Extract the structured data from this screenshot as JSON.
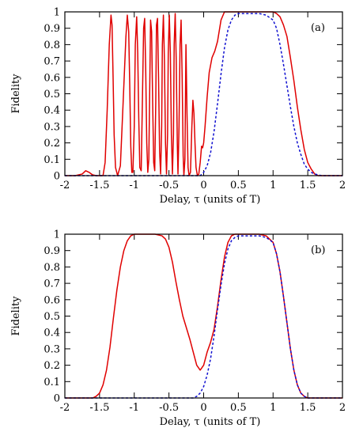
{
  "chart_data": [
    {
      "type": "line",
      "panel_label": "(a)",
      "xlabel": "Delay, τ (units of T)",
      "ylabel": "Fidelity",
      "xlim": [
        -2,
        2
      ],
      "ylim": [
        0,
        1
      ],
      "xticks": [
        "-2",
        "-1.5",
        "-1",
        "-0.5",
        "0",
        "0.5",
        "1",
        "1.5",
        "2"
      ],
      "yticks": [
        "0",
        "0.1",
        "0.2",
        "0.3",
        "0.4",
        "0.5",
        "0.6",
        "0.7",
        "0.8",
        "0.9",
        "1"
      ],
      "grid": false,
      "legend": "none",
      "series": [
        {
          "color": "#e00000",
          "style": "solid",
          "x": [
            -2.0,
            -1.85,
            -1.75,
            -1.7,
            -1.65,
            -1.6,
            -1.55,
            -1.5,
            -1.45,
            -1.42,
            -1.39,
            -1.36,
            -1.335,
            -1.32,
            -1.305,
            -1.29,
            -1.27,
            -1.24,
            -1.2,
            -1.16,
            -1.12,
            -1.1,
            -1.08,
            -1.065,
            -1.05,
            -1.035,
            -1.02,
            -1.0,
            -0.985,
            -0.965,
            -0.95,
            -0.935,
            -0.92,
            -0.9,
            -0.885,
            -0.865,
            -0.85,
            -0.835,
            -0.82,
            -0.805,
            -0.79,
            -0.775,
            -0.765,
            -0.75,
            -0.735,
            -0.72,
            -0.705,
            -0.69,
            -0.68,
            -0.665,
            -0.65,
            -0.635,
            -0.62,
            -0.605,
            -0.595,
            -0.58,
            -0.565,
            -0.55,
            -0.535,
            -0.52,
            -0.51,
            -0.495,
            -0.48,
            -0.465,
            -0.45,
            -0.435,
            -0.425,
            -0.41,
            -0.395,
            -0.38,
            -0.37,
            -0.355,
            -0.34,
            -0.325,
            -0.31,
            -0.295,
            -0.285,
            -0.27,
            -0.255,
            -0.24,
            -0.225,
            -0.21,
            -0.19,
            -0.17,
            -0.155,
            -0.14,
            -0.125,
            -0.11,
            -0.09,
            -0.07,
            -0.05,
            -0.03,
            -0.015,
            0.0,
            0.02,
            0.05,
            0.08,
            0.12,
            0.16,
            0.2,
            0.25,
            0.3,
            0.35,
            0.4,
            0.45,
            0.5,
            0.6,
            0.7,
            0.8,
            0.9,
            1.0,
            1.05,
            1.1,
            1.15,
            1.2,
            1.25,
            1.3,
            1.35,
            1.4,
            1.45,
            1.5,
            1.55,
            1.6,
            1.65,
            1.7,
            1.8,
            1.9,
            2.0
          ],
          "y": [
            0.0,
            0.0,
            0.01,
            0.03,
            0.02,
            0.005,
            0.0,
            0.0,
            0.0,
            0.08,
            0.4,
            0.8,
            0.98,
            0.92,
            0.6,
            0.25,
            0.05,
            0.0,
            0.06,
            0.45,
            0.85,
            0.98,
            0.88,
            0.55,
            0.18,
            0.02,
            0.02,
            0.3,
            0.8,
            0.97,
            0.75,
            0.35,
            0.05,
            0.03,
            0.4,
            0.9,
            0.96,
            0.65,
            0.2,
            0.02,
            0.1,
            0.6,
            0.95,
            0.88,
            0.45,
            0.08,
            0.03,
            0.45,
            0.92,
            0.96,
            0.6,
            0.15,
            0.01,
            0.3,
            0.8,
            0.98,
            0.7,
            0.2,
            0.01,
            0.25,
            0.75,
            0.98,
            0.75,
            0.25,
            0.01,
            0.25,
            0.8,
            0.99,
            0.7,
            0.2,
            0.01,
            0.3,
            0.8,
            0.95,
            0.6,
            0.12,
            0.0,
            0.1,
            0.8,
            0.38,
            0.05,
            0.0,
            0.02,
            0.3,
            0.46,
            0.38,
            0.2,
            0.05,
            0.0,
            0.01,
            0.08,
            0.18,
            0.17,
            0.2,
            0.3,
            0.48,
            0.63,
            0.72,
            0.76,
            0.82,
            0.95,
            1.0,
            1.0,
            1.0,
            1.0,
            1.0,
            1.0,
            1.0,
            1.0,
            1.0,
            1.0,
            0.99,
            0.97,
            0.92,
            0.85,
            0.72,
            0.58,
            0.42,
            0.28,
            0.16,
            0.08,
            0.04,
            0.01,
            0.0,
            0.0,
            0.0,
            0.0,
            0.0
          ]
        },
        {
          "color": "#1010d0",
          "style": "dashed",
          "x": [
            -2.0,
            -0.1,
            -0.05,
            0.0,
            0.05,
            0.1,
            0.15,
            0.2,
            0.25,
            0.3,
            0.35,
            0.4,
            0.45,
            0.5,
            0.55,
            0.6,
            0.7,
            0.8,
            0.9,
            1.0,
            1.05,
            1.1,
            1.15,
            1.2,
            1.25,
            1.3,
            1.35,
            1.4,
            1.45,
            1.5,
            1.55,
            1.6,
            1.7,
            2.0
          ],
          "y": [
            0.0,
            0.0,
            0.0,
            0.02,
            0.06,
            0.14,
            0.27,
            0.44,
            0.62,
            0.78,
            0.89,
            0.95,
            0.98,
            0.99,
            0.99,
            0.99,
            0.99,
            0.99,
            0.98,
            0.95,
            0.9,
            0.8,
            0.68,
            0.55,
            0.42,
            0.3,
            0.2,
            0.13,
            0.07,
            0.04,
            0.02,
            0.01,
            0.0,
            0.0
          ]
        }
      ]
    },
    {
      "type": "line",
      "panel_label": "(b)",
      "xlabel": "Delay, τ (units of T)",
      "ylabel": "Fidelity",
      "xlim": [
        -2,
        2
      ],
      "ylim": [
        0,
        1
      ],
      "xticks": [
        "-2",
        "-1.5",
        "-1",
        "-0.5",
        "0",
        "0.5",
        "1",
        "1.5",
        "2"
      ],
      "yticks": [
        "0",
        "0.1",
        "0.2",
        "0.3",
        "0.4",
        "0.5",
        "0.6",
        "0.7",
        "0.8",
        "0.9",
        "1"
      ],
      "grid": false,
      "legend": "none",
      "series": [
        {
          "color": "#e00000",
          "style": "solid",
          "x": [
            -2.0,
            -1.7,
            -1.6,
            -1.55,
            -1.5,
            -1.45,
            -1.4,
            -1.35,
            -1.3,
            -1.25,
            -1.2,
            -1.15,
            -1.1,
            -1.05,
            -1.0,
            -0.9,
            -0.8,
            -0.7,
            -0.6,
            -0.55,
            -0.5,
            -0.45,
            -0.4,
            -0.35,
            -0.3,
            -0.25,
            -0.2,
            -0.15,
            -0.1,
            -0.05,
            0.0,
            0.05,
            0.1,
            0.15,
            0.2,
            0.25,
            0.3,
            0.35,
            0.4,
            0.45,
            0.5,
            0.6,
            0.7,
            0.8,
            0.9,
            1.0,
            1.05,
            1.1,
            1.15,
            1.2,
            1.25,
            1.3,
            1.35,
            1.4,
            1.45,
            1.5,
            1.6,
            2.0
          ],
          "y": [
            0.0,
            0.0,
            0.0,
            0.01,
            0.03,
            0.08,
            0.17,
            0.31,
            0.49,
            0.66,
            0.8,
            0.9,
            0.96,
            0.99,
            1.0,
            1.0,
            1.0,
            1.0,
            0.99,
            0.97,
            0.92,
            0.83,
            0.71,
            0.6,
            0.5,
            0.43,
            0.36,
            0.28,
            0.2,
            0.17,
            0.2,
            0.28,
            0.34,
            0.42,
            0.56,
            0.72,
            0.86,
            0.95,
            0.99,
            1.0,
            1.0,
            1.0,
            1.0,
            1.0,
            0.99,
            0.95,
            0.88,
            0.77,
            0.62,
            0.46,
            0.3,
            0.17,
            0.08,
            0.03,
            0.01,
            0.0,
            0.0,
            0.0
          ]
        },
        {
          "color": "#1010d0",
          "style": "dashed",
          "x": [
            -2.0,
            -0.2,
            -0.15,
            -0.1,
            -0.05,
            0.0,
            0.05,
            0.1,
            0.15,
            0.2,
            0.25,
            0.3,
            0.35,
            0.4,
            0.45,
            0.5,
            0.55,
            0.6,
            0.7,
            0.8,
            0.9,
            1.0,
            1.05,
            1.1,
            1.15,
            1.2,
            1.25,
            1.3,
            1.35,
            1.4,
            1.45,
            1.5,
            1.6,
            2.0
          ],
          "y": [
            0.0,
            0.0,
            0.0,
            0.01,
            0.03,
            0.07,
            0.14,
            0.24,
            0.38,
            0.54,
            0.69,
            0.82,
            0.91,
            0.96,
            0.98,
            0.99,
            0.99,
            0.99,
            0.99,
            0.99,
            0.98,
            0.95,
            0.88,
            0.77,
            0.62,
            0.46,
            0.3,
            0.17,
            0.08,
            0.03,
            0.01,
            0.0,
            0.0,
            0.0
          ]
        }
      ]
    }
  ]
}
